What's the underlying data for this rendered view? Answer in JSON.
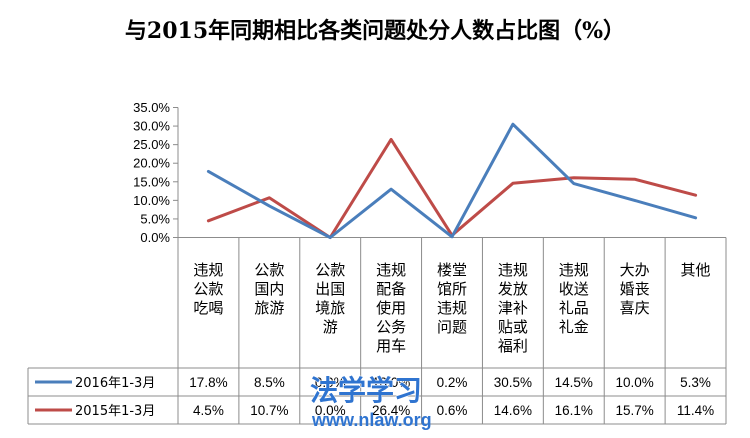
{
  "chart_data": {
    "type": "line",
    "title": "与2015年同期相比各类问题处分人数占比图（%）",
    "categories": [
      [
        "违规",
        "公款",
        "吃喝"
      ],
      [
        "公款",
        "国内",
        "旅游"
      ],
      [
        "公款",
        "出国",
        "境旅",
        "游"
      ],
      [
        "违规",
        "配备",
        "使用",
        "公务",
        "用车"
      ],
      [
        "楼堂",
        "馆所",
        "违规",
        "问题"
      ],
      [
        "违规",
        "发放",
        "津补",
        "贴或",
        "福利"
      ],
      [
        "违规",
        "收送",
        "礼品",
        "礼金"
      ],
      [
        "大办",
        "婚丧",
        "喜庆"
      ],
      [
        "其他"
      ]
    ],
    "y_ticks": [
      "35.0%",
      "30.0%",
      "25.0%",
      "20.0%",
      "15.0%",
      "10.0%",
      "5.0%",
      "0.0%"
    ],
    "ylim": [
      0,
      35
    ],
    "series": [
      {
        "name": "2016年1-3月",
        "color": "#4a7ebb",
        "values": [
          17.8,
          8.5,
          0.0,
          13.0,
          0.2,
          30.5,
          14.5,
          10.0,
          5.3
        ],
        "labels": [
          "17.8%",
          "8.5%",
          "0.0%",
          "13.0%",
          "0.2%",
          "30.5%",
          "14.5%",
          "10.0%",
          "5.3%"
        ]
      },
      {
        "name": "2015年1-3月",
        "color": "#be4b48",
        "values": [
          4.5,
          10.7,
          0.0,
          26.4,
          0.6,
          14.6,
          16.1,
          15.7,
          11.4
        ],
        "labels": [
          "4.5%",
          "10.7%",
          "0.0%",
          "26.4%",
          "0.6%",
          "14.6%",
          "16.1%",
          "15.7%",
          "11.4%"
        ]
      }
    ],
    "grid": false,
    "legend": "data-table"
  },
  "watermark": {
    "text": "法学学习",
    "url": "www.nlaw.org"
  }
}
